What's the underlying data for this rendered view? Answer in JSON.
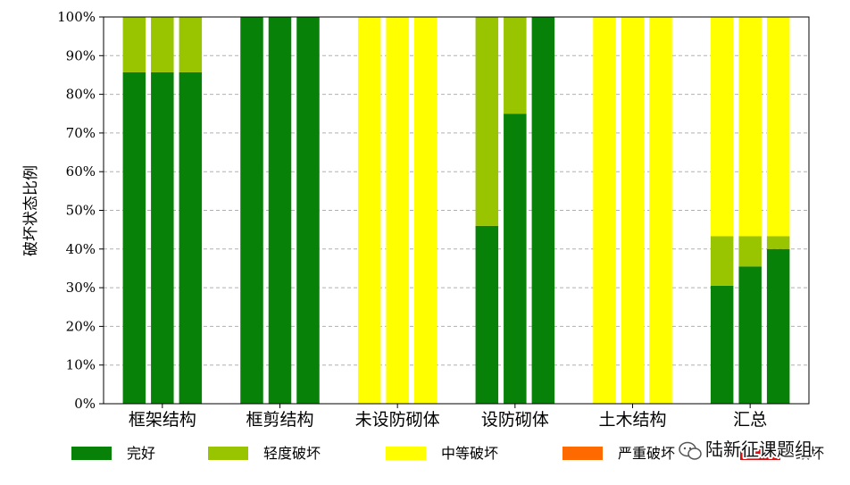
{
  "chart_data": {
    "type": "bar",
    "stacked": true,
    "xlabel": "",
    "ylabel": "破坏状态比例",
    "ylim": [
      0,
      100
    ],
    "yticks": [
      "0%",
      "10%",
      "20%",
      "30%",
      "40%",
      "50%",
      "60%",
      "70%",
      "80%",
      "90%",
      "100%"
    ],
    "grid": "horizontal dashed",
    "legend_position": "bottom",
    "categories": [
      "框架结构",
      "框剪结构",
      "未设防砌体",
      "设防砌体",
      "土木结构",
      "汇总"
    ],
    "bars_per_category": 3,
    "series": [
      {
        "name": "完好",
        "color": "#078107",
        "values": [
          [
            85.7,
            85.7,
            85.7
          ],
          [
            100,
            100,
            100
          ],
          [
            0,
            0,
            0
          ],
          [
            46,
            75,
            100
          ],
          [
            0,
            0,
            0
          ],
          [
            30.5,
            35.5,
            40
          ]
        ]
      },
      {
        "name": "轻度破坏",
        "color": "#99c400",
        "values": [
          [
            14.3,
            14.3,
            14.3
          ],
          [
            0,
            0,
            0
          ],
          [
            0,
            0,
            0
          ],
          [
            54,
            25,
            0
          ],
          [
            0,
            0,
            0
          ],
          [
            12.8,
            7.8,
            3.3
          ]
        ]
      },
      {
        "name": "中等破坏",
        "color": "#ffff00",
        "values": [
          [
            0,
            0,
            0
          ],
          [
            0,
            0,
            0
          ],
          [
            100,
            100,
            100
          ],
          [
            0,
            0,
            0
          ],
          [
            100,
            100,
            100
          ],
          [
            56.7,
            56.7,
            56.7
          ]
        ]
      },
      {
        "name": "严重破坏",
        "color": "#ff6a00",
        "values": [
          [
            0,
            0,
            0
          ],
          [
            0,
            0,
            0
          ],
          [
            0,
            0,
            0
          ],
          [
            0,
            0,
            0
          ],
          [
            0,
            0,
            0
          ],
          [
            0,
            0,
            0
          ]
        ]
      },
      {
        "name": "毁坏",
        "color": "#d81010",
        "values": [
          [
            0,
            0,
            0
          ],
          [
            0,
            0,
            0
          ],
          [
            0,
            0,
            0
          ],
          [
            0,
            0,
            0
          ],
          [
            0,
            0,
            0
          ],
          [
            0,
            0,
            0
          ]
        ]
      }
    ]
  },
  "legend": {
    "items": [
      {
        "label": "完好",
        "color": "#078107"
      },
      {
        "label": "轻度破坏",
        "color": "#99c400"
      },
      {
        "label": "中等破坏",
        "color": "#ffff00"
      },
      {
        "label": "严重破坏",
        "color": "#ff6a00"
      },
      {
        "label": "毁坏",
        "color": "#d81010"
      }
    ]
  },
  "watermark": {
    "text": "陆新征课题组",
    "icon": "wechat-icon"
  }
}
